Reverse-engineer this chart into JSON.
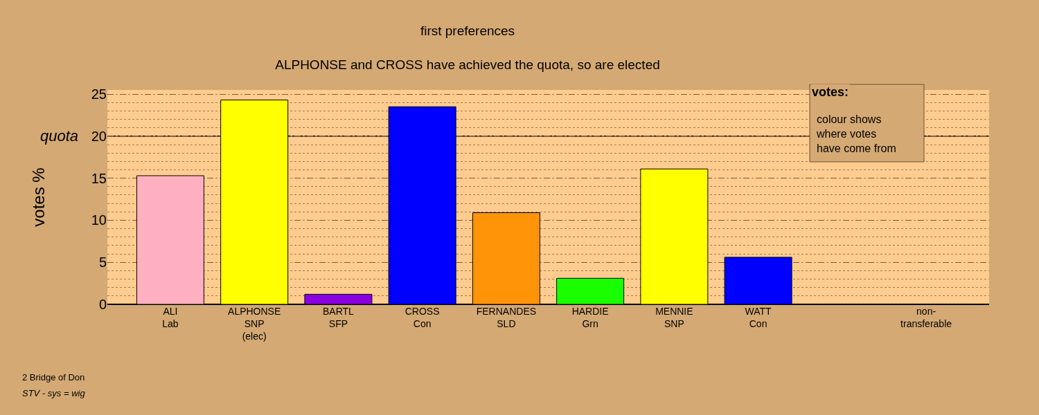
{
  "chart_data": {
    "type": "bar",
    "title": "first preferences",
    "subtitle": "ALPHONSE and CROSS have achieved the quota, so are elected",
    "ylabel": "votes %",
    "categories": [
      "ALI\nLab",
      "ALPHONSE\nSNP\n(elec)",
      "BARTL\nSFP",
      "CROSS\nCon",
      "FERNANDES\nSLD",
      "HARDIE\nGrn",
      "MENNIE\nSNP",
      "WATT\nCon",
      null,
      "non-\ntransferable"
    ],
    "values": [
      15.3,
      24.3,
      1.2,
      23.5,
      10.9,
      3.1,
      16.1,
      5.6,
      null,
      null
    ],
    "colors": [
      "#ffb0c0",
      "#ffff00",
      "#8b00e0",
      "#0000ff",
      "#ff9408",
      "#1aff00",
      "#ffff00",
      "#0000ff",
      "#0000ff",
      "#0000ff"
    ],
    "ylim": [
      0,
      25.5
    ],
    "yticks": [
      0,
      5,
      10,
      15,
      20,
      25
    ],
    "grid": "y",
    "ref_lines": [
      {
        "axis": "y",
        "value": 20,
        "label": "quota",
        "color": "#000000",
        "line_style": "solid"
      }
    ],
    "annotations": [
      "votes:",
      "colour shows\nwhere votes\nhave come from",
      "2 Bridge of Don",
      "STV - sys = wig"
    ]
  }
}
